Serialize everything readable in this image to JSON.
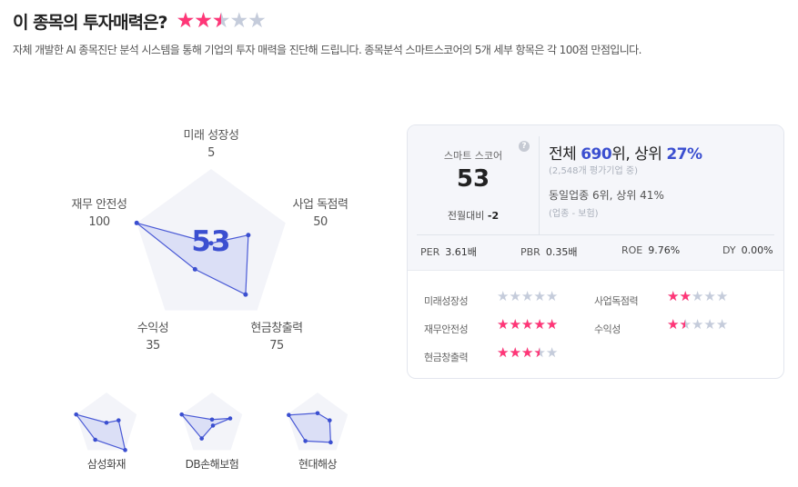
{
  "header": {
    "title": "이 종목의 투자매력은?",
    "rating": 2.5,
    "description": "자체 개발한 AI 종목진단 분석 시스템을 통해 기업의 투자 매력을 진단해 드립니다. 종목분석 스마트스코어의 5개 세부 항목은 각 100점 만점입니다."
  },
  "radar": {
    "score": "53",
    "axes": [
      {
        "label": "미래 성장성",
        "value": 5
      },
      {
        "label": "사업 독점력",
        "value": 50
      },
      {
        "label": "현금창출력",
        "value": 75
      },
      {
        "label": "수익성",
        "value": 35
      },
      {
        "label": "재무 안전성",
        "value": 100
      }
    ]
  },
  "peers": [
    {
      "name": "삼성화재",
      "values": [
        5,
        40,
        100,
        60,
        100
      ]
    },
    {
      "name": "DB손해보험",
      "values": [
        15,
        60,
        5,
        55,
        100
      ]
    },
    {
      "name": "현대해상",
      "values": [
        35,
        40,
        70,
        65,
        95
      ]
    }
  ],
  "card": {
    "smart_score_label": "스마트 스코어",
    "smart_score": "53",
    "help_icon": "?",
    "mom_label": "전월대비",
    "mom_value": "-2",
    "rank_prefix": "전체 ",
    "rank": "690",
    "rank_unit": "위, 상위 ",
    "top_pct": "27%",
    "rank_note": "(2,548개 평가기업 중)",
    "industry_rank": "동일업종 6위, 상위 41%",
    "industry_note": "(업종 - 보험)",
    "metrics": [
      {
        "label": "PER",
        "value": "3.61배"
      },
      {
        "label": "PBR",
        "value": "0.35배"
      },
      {
        "label": "ROE",
        "value": "9.76%"
      },
      {
        "label": "DY",
        "value": "0.00%"
      }
    ],
    "scores": [
      {
        "label": "미래성장성",
        "stars": 0
      },
      {
        "label": "사업독점력",
        "stars": 2
      },
      {
        "label": "재무안전성",
        "stars": 5
      },
      {
        "label": "수익성",
        "stars": 1.5
      },
      {
        "label": "현금창출력",
        "stars": 3.5
      }
    ]
  },
  "colors": {
    "accent": "#3b4fd0",
    "star_on": "#ff3677",
    "star_off": "#c5ccdb"
  }
}
